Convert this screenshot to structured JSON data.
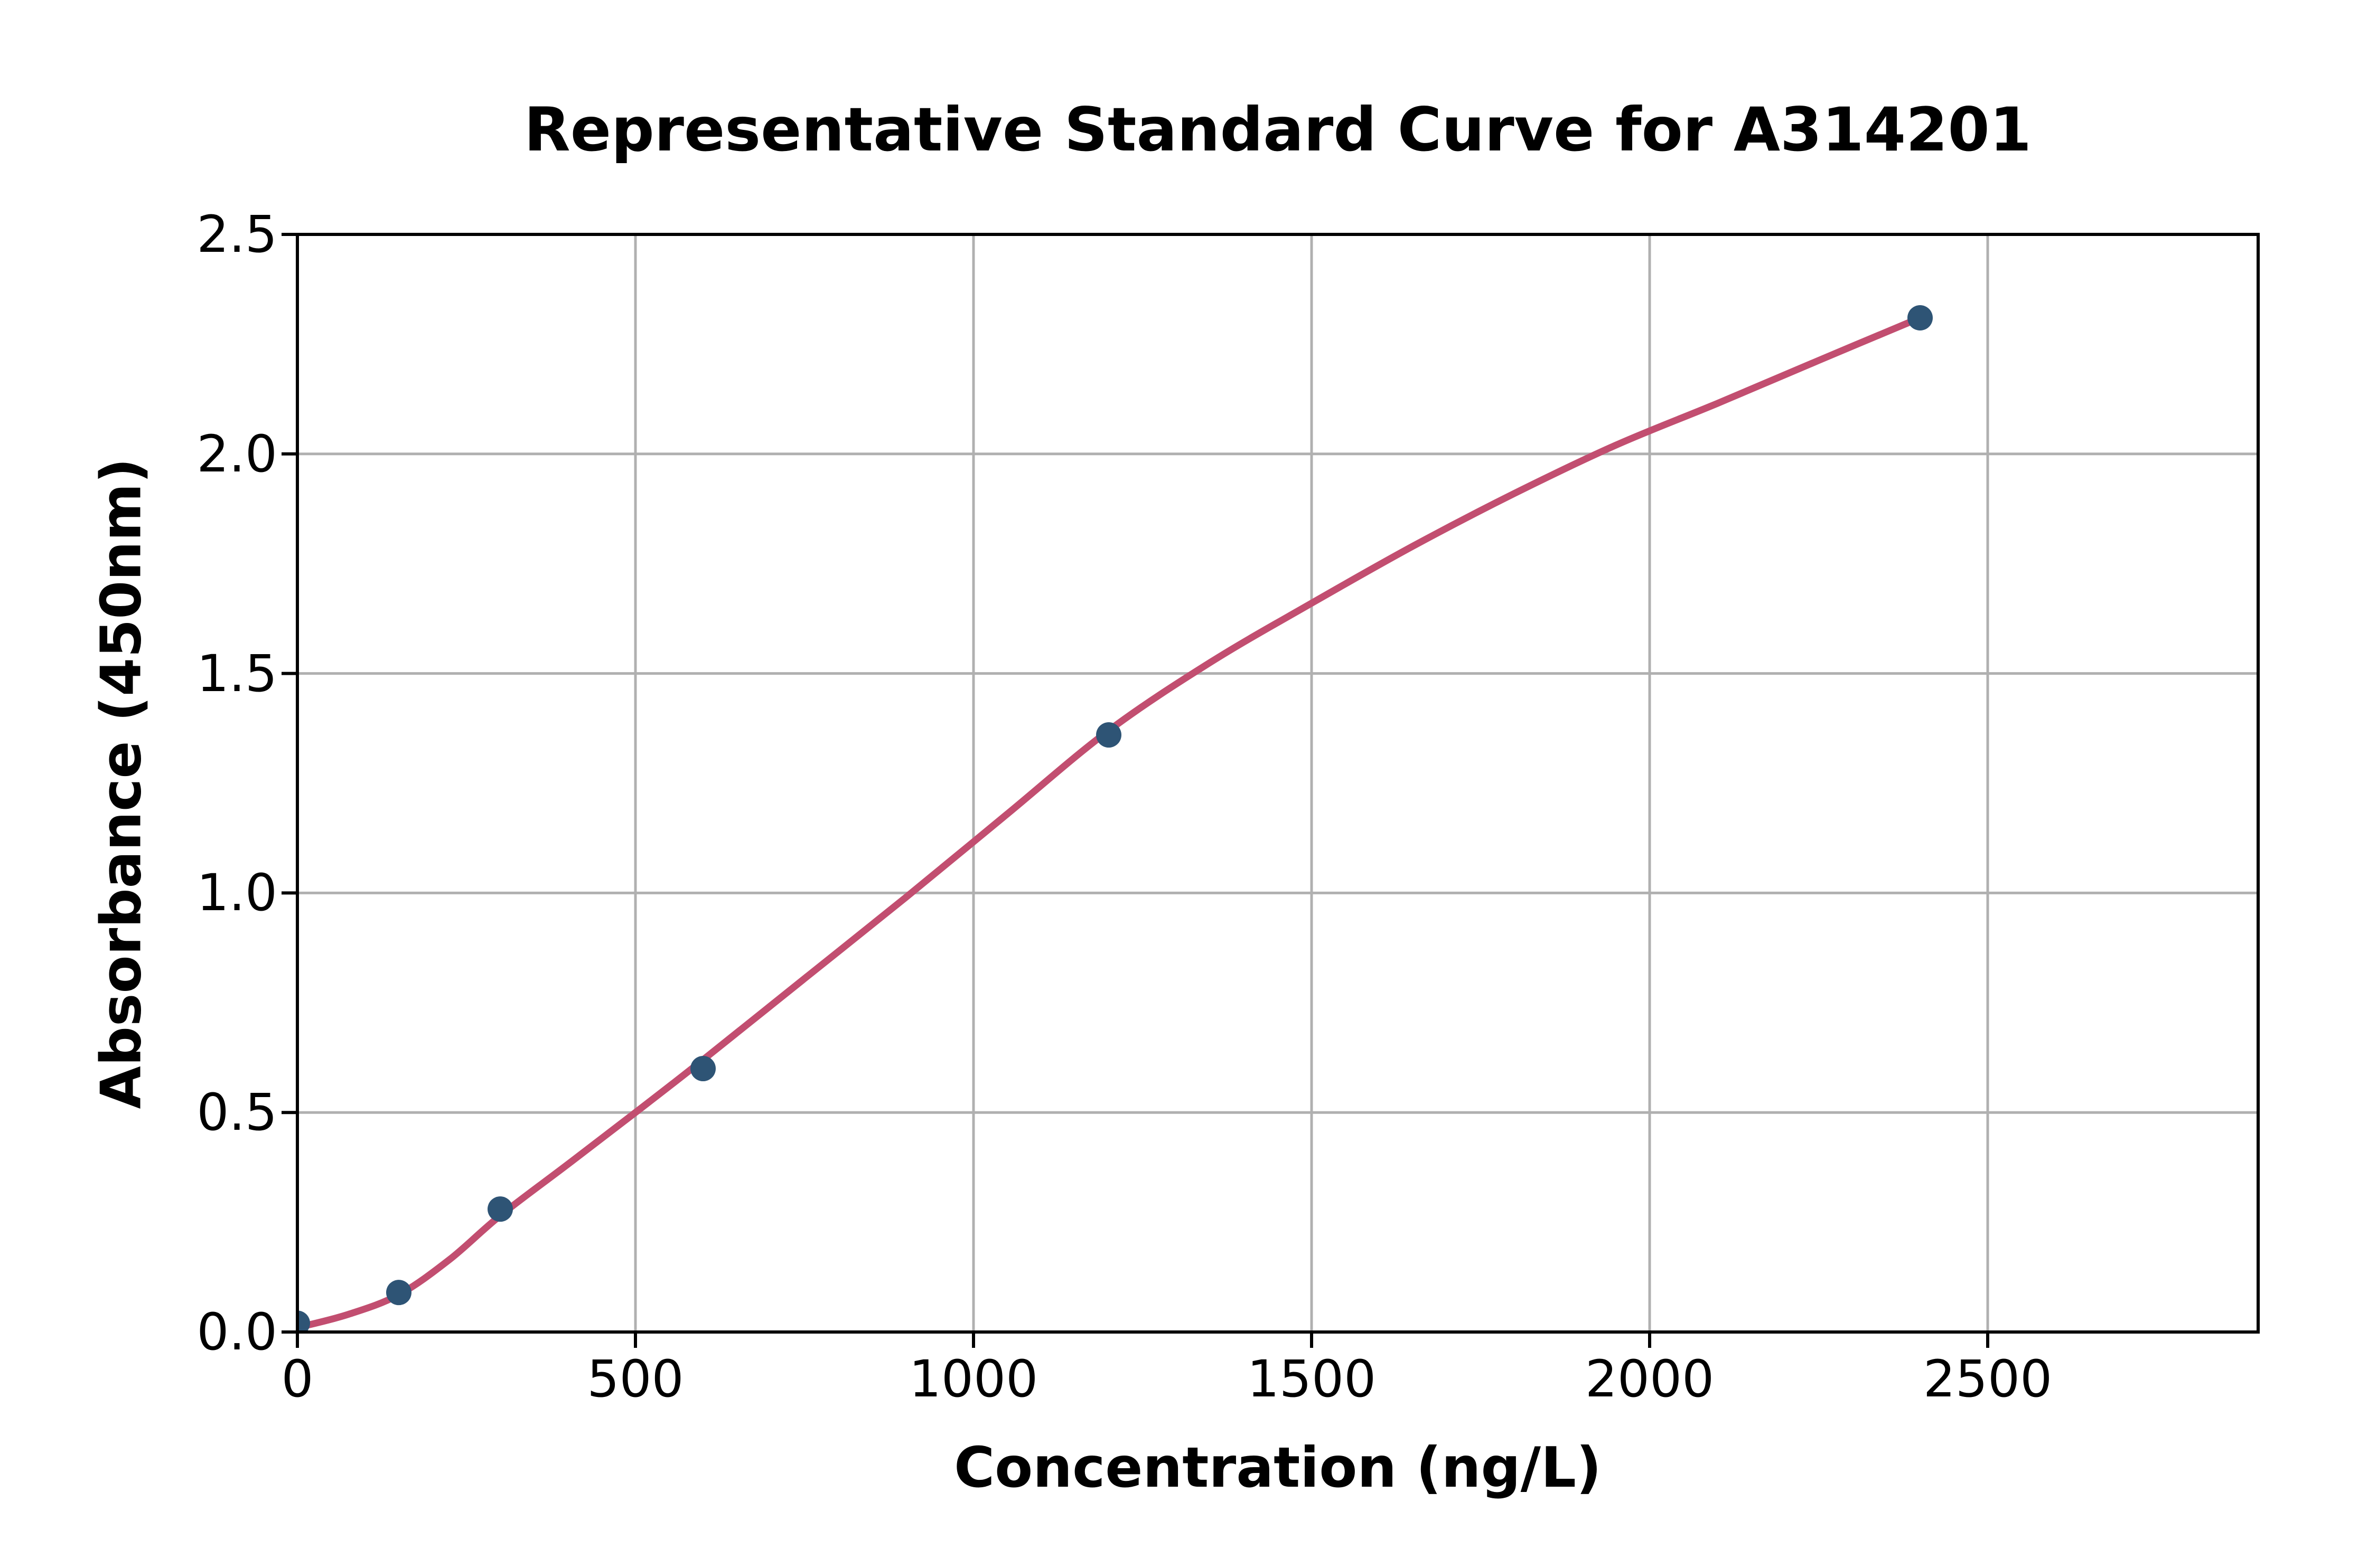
{
  "chart_data": {
    "type": "scatter",
    "title": "Representative Standard Curve for A314201",
    "xlabel": "Concentration (ng/L)",
    "ylabel": "Absorbance (450nm)",
    "xlim": [
      0,
      2900
    ],
    "ylim": [
      0,
      2.5
    ],
    "x_ticks": [
      0,
      500,
      1000,
      1500,
      2000,
      2500
    ],
    "x_tick_labels": [
      "0",
      "500",
      "1000",
      "1500",
      "2000",
      "2500"
    ],
    "y_ticks": [
      0.0,
      0.5,
      1.0,
      1.5,
      2.0,
      2.5
    ],
    "y_tick_labels": [
      "0.0",
      "0.5",
      "1.0",
      "1.5",
      "2.0",
      "2.5"
    ],
    "grid": true,
    "legend": "none",
    "series": [
      {
        "name": "standard-points",
        "type": "scatter",
        "color": "#2e5475",
        "points": [
          [
            0,
            0.02
          ],
          [
            150,
            0.09
          ],
          [
            300,
            0.28
          ],
          [
            600,
            0.6
          ],
          [
            1200,
            1.36
          ],
          [
            2400,
            2.31
          ]
        ]
      },
      {
        "name": "fitted-curve",
        "type": "line",
        "color": "#c24e70",
        "points": [
          [
            0,
            0.01
          ],
          [
            75,
            0.04
          ],
          [
            150,
            0.085
          ],
          [
            225,
            0.165
          ],
          [
            300,
            0.265
          ],
          [
            400,
            0.382
          ],
          [
            500,
            0.5
          ],
          [
            600,
            0.62
          ],
          [
            750,
            0.805
          ],
          [
            900,
            0.99
          ],
          [
            1050,
            1.18
          ],
          [
            1200,
            1.37
          ],
          [
            1350,
            1.525
          ],
          [
            1500,
            1.66
          ],
          [
            1650,
            1.79
          ],
          [
            1800,
            1.91
          ],
          [
            1950,
            2.02
          ],
          [
            2100,
            2.115
          ],
          [
            2250,
            2.213
          ],
          [
            2400,
            2.31
          ]
        ]
      }
    ],
    "colors": {
      "grid": "#b0b0b0",
      "axis": "#000000",
      "background": "#ffffff"
    }
  }
}
